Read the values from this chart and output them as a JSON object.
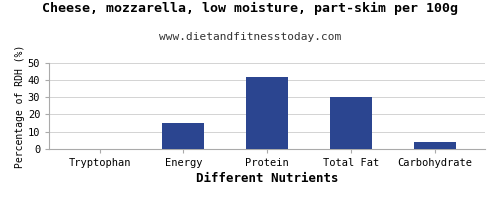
{
  "title": "Cheese, mozzarella, low moisture, part-skim per 100g",
  "subtitle": "www.dietandfitnesstoday.com",
  "xlabel": "Different Nutrients",
  "ylabel": "Percentage of RDH (%)",
  "categories": [
    "Tryptophan",
    "Energy",
    "Protein",
    "Total Fat",
    "Carbohydrate"
  ],
  "values": [
    0,
    15,
    42,
    30,
    4
  ],
  "bar_color": "#2b4590",
  "ylim": [
    0,
    50
  ],
  "yticks": [
    0,
    10,
    20,
    30,
    40,
    50
  ],
  "background_color": "#ffffff",
  "title_fontsize": 9.5,
  "subtitle_fontsize": 8,
  "xlabel_fontsize": 9,
  "ylabel_fontsize": 7,
  "tick_fontsize": 7.5
}
